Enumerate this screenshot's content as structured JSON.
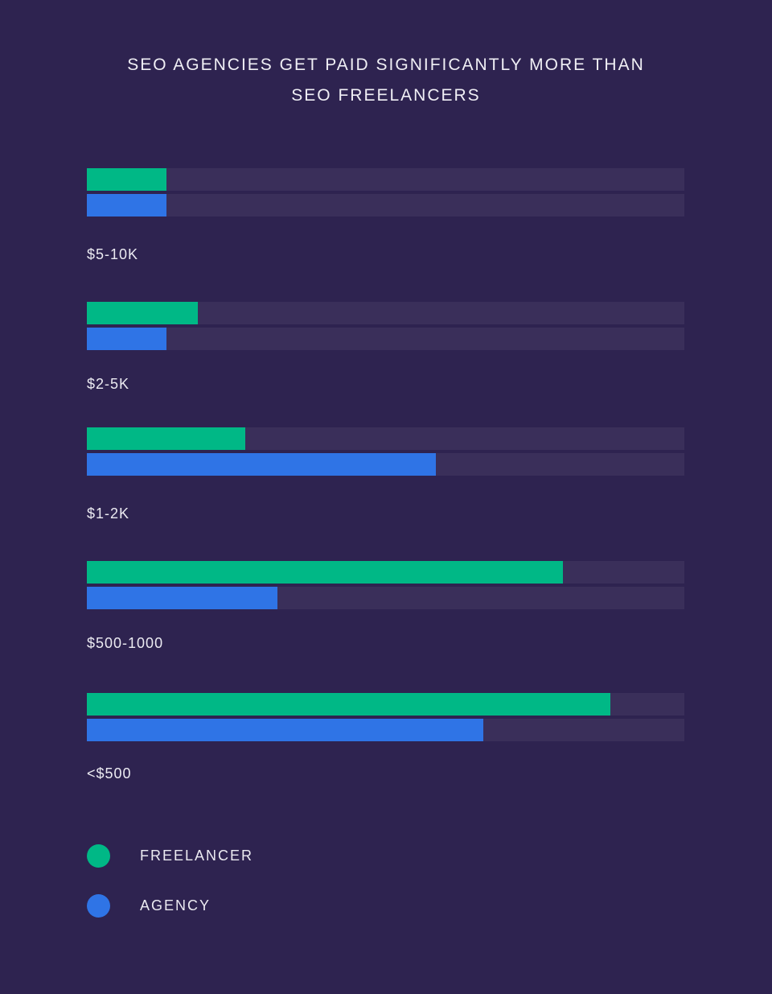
{
  "chart_data": {
    "type": "bar",
    "orientation": "horizontal",
    "title": "SEO AGENCIES GET PAID SIGNIFICANTLY MORE THAN SEO FREELANCERS",
    "title_lines": [
      "SEO AGENCIES GET PAID SIGNIFICANTLY MORE THAN",
      "SEO FREELANCERS"
    ],
    "categories": [
      "$5-10K",
      "$2-5K",
      "$1-2K",
      "$500-1000",
      "<$500"
    ],
    "series": [
      {
        "name": "FREELANCER",
        "color": "#00b886",
        "values": [
          13.3,
          18.6,
          26.5,
          79.7,
          87.6
        ]
      },
      {
        "name": "AGENCY",
        "color": "#2f74e6",
        "values": [
          13.3,
          13.3,
          58.4,
          31.9,
          66.4
        ]
      }
    ],
    "value_unit": "percent of bar track (relative, no axis shown)",
    "xlim": [
      0,
      100
    ],
    "xlabel": "",
    "ylabel": "",
    "grid": false,
    "legend_position": "bottom-left"
  },
  "colors": {
    "background": "#2e2350",
    "track": "#3a2f5a",
    "freelancer": "#00b886",
    "agency": "#2f74e6"
  },
  "legend": [
    {
      "label": "FREELANCER",
      "color": "#00b886"
    },
    {
      "label": "AGENCY",
      "color": "#2f74e6"
    }
  ]
}
